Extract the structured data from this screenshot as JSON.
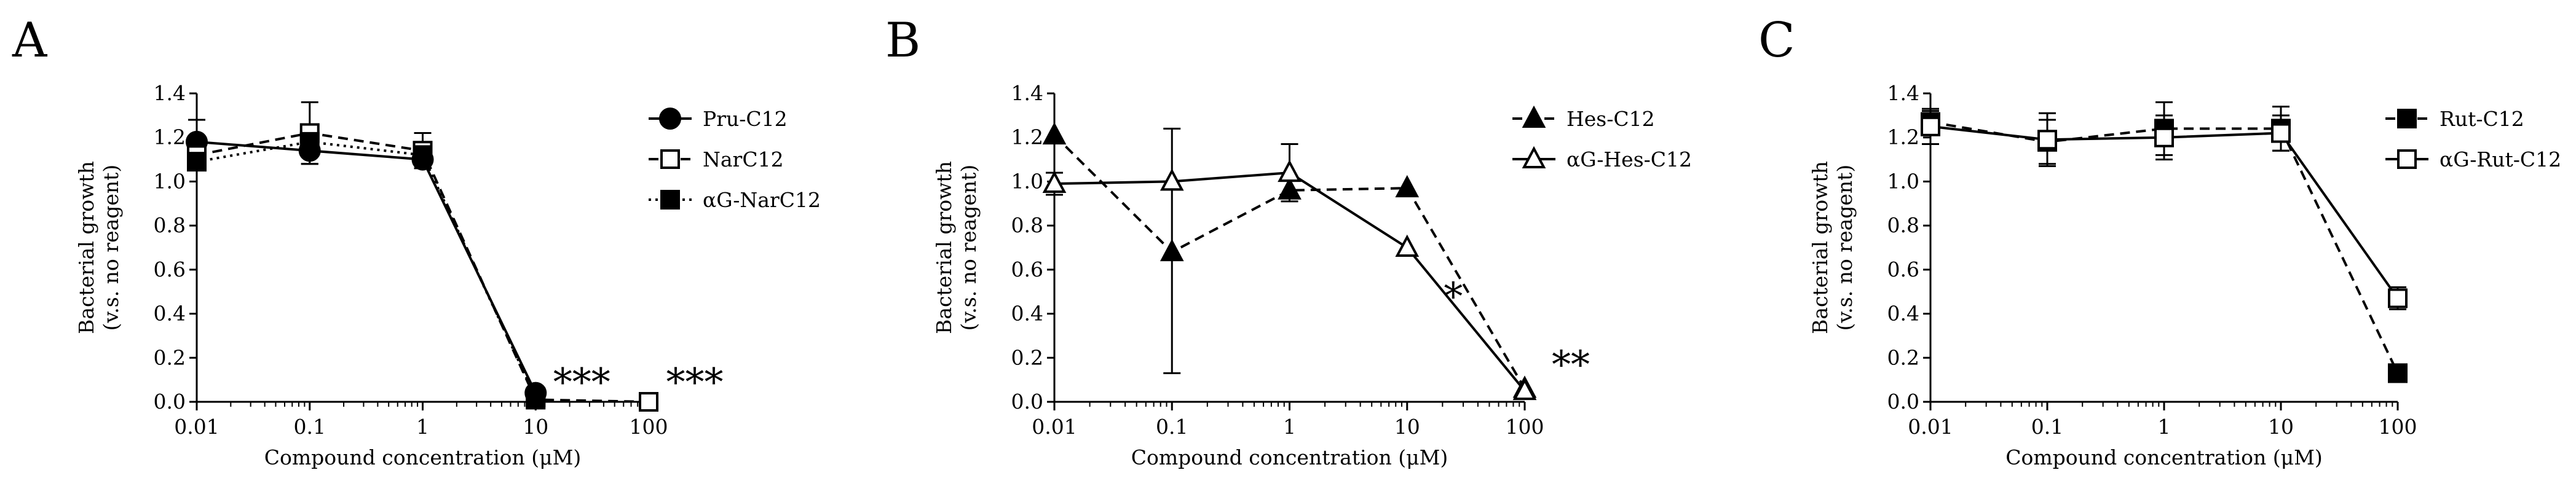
{
  "chart_data": [
    {
      "type": "line",
      "panel": "A",
      "xlabel": "Compound concentration (μM)",
      "ylabel_line1": "Bacterial growth",
      "ylabel_line2": "(v.s. no reagent)",
      "x_scale": "log",
      "xlim": [
        0.01,
        100
      ],
      "ylim": [
        0,
        1.4
      ],
      "x_ticks": [
        "0.01",
        "0.1",
        "1",
        "10",
        "100"
      ],
      "y_ticks": [
        "0.0",
        "0.2",
        "0.4",
        "0.6",
        "0.8",
        "1.0",
        "1.2",
        "1.4"
      ],
      "legend_position": "top-right",
      "series": [
        {
          "name": "Pru-C12",
          "marker": "circle",
          "fill": "filled",
          "line": "solid",
          "points": [
            {
              "x": 0.01,
              "y": 1.18,
              "err": 0.1
            },
            {
              "x": 0.1,
              "y": 1.14,
              "err": 0.06
            },
            {
              "x": 1,
              "y": 1.1,
              "err": 0.03
            },
            {
              "x": 10,
              "y": 0.04,
              "err": 0.01
            }
          ]
        },
        {
          "name": "NarC12",
          "marker": "square",
          "fill": "open",
          "line": "dashed",
          "points": [
            {
              "x": 0.01,
              "y": 1.12,
              "err": 0.03
            },
            {
              "x": 0.1,
              "y": 1.22,
              "err": 0.14
            },
            {
              "x": 1,
              "y": 1.14,
              "err": 0.08
            },
            {
              "x": 10,
              "y": 0.01,
              "err": 0.01
            },
            {
              "x": 100,
              "y": 0.0,
              "err": 0
            }
          ]
        },
        {
          "name": "αG-NarC12",
          "marker": "square",
          "fill": "filled",
          "line": "dotted",
          "points": [
            {
              "x": 0.01,
              "y": 1.09,
              "err": 0.03
            },
            {
              "x": 0.1,
              "y": 1.18,
              "err": 0.04
            },
            {
              "x": 1,
              "y": 1.12,
              "err": 0.03
            },
            {
              "x": 10,
              "y": 0.02,
              "err": 0.01
            }
          ]
        }
      ],
      "annotations": [
        {
          "text": "***",
          "x": 10,
          "y": 0.09
        },
        {
          "text": "***",
          "x": 100,
          "y": 0.09
        }
      ]
    },
    {
      "type": "line",
      "panel": "B",
      "xlabel": "Compound concentration (μM)",
      "ylabel_line1": "Bacterial growth",
      "ylabel_line2": "(v.s. no reagent)",
      "x_scale": "log",
      "xlim": [
        0.01,
        100
      ],
      "ylim": [
        0,
        1.4
      ],
      "x_ticks": [
        "0.01",
        "0.1",
        "1",
        "10",
        "100"
      ],
      "y_ticks": [
        "0.0",
        "0.2",
        "0.4",
        "0.6",
        "0.8",
        "1.0",
        "1.2",
        "1.4"
      ],
      "legend_position": "top-right",
      "series": [
        {
          "name": "Hes-C12",
          "marker": "triangle",
          "fill": "filled",
          "line": "dashed",
          "points": [
            {
              "x": 0.01,
              "y": 1.21,
              "err": 0
            },
            {
              "x": 0.1,
              "y": 0.68,
              "err": 0
            },
            {
              "x": 1,
              "y": 0.96,
              "err": 0
            },
            {
              "x": 10,
              "y": 0.97,
              "err": 0
            },
            {
              "x": 100,
              "y": 0.06,
              "err": 0
            }
          ]
        },
        {
          "name": "αG-Hes-C12",
          "marker": "triangle",
          "fill": "open",
          "line": "solid",
          "points": [
            {
              "x": 0.01,
              "y": 0.99,
              "err": 0.05
            },
            {
              "x": 0.1,
              "y": 1.0,
              "err": 0.24
            },
            {
              "x": 1,
              "y": 1.04,
              "err": 0.13
            },
            {
              "x": 10,
              "y": 0.7,
              "err": 0
            },
            {
              "x": 100,
              "y": 0.05,
              "err": 0
            }
          ],
          "asym_err": [
            {
              "x": 0.1,
              "low": 0.13,
              "high": 1.24
            }
          ]
        }
      ],
      "annotations": [
        {
          "text": "*",
          "x": 10,
          "y": 0.48
        },
        {
          "text": "**",
          "x": 100,
          "y": 0.17
        }
      ]
    },
    {
      "type": "line",
      "panel": "C",
      "xlabel": "Compound concentration (μM)",
      "ylabel_line1": "Bacterial growth",
      "ylabel_line2": "(v.s. no reagent)",
      "x_scale": "log",
      "xlim": [
        0.01,
        100
      ],
      "ylim": [
        0,
        1.4
      ],
      "x_ticks": [
        "0.01",
        "0.1",
        "1",
        "10",
        "100"
      ],
      "y_ticks": [
        "0.0",
        "0.2",
        "0.4",
        "0.6",
        "0.8",
        "1.0",
        "1.2",
        "1.4"
      ],
      "legend_position": "top-right",
      "series": [
        {
          "name": "Rut-C12",
          "marker": "square",
          "fill": "filled",
          "line": "dashed",
          "points": [
            {
              "x": 0.01,
              "y": 1.27,
              "err": 0.05
            },
            {
              "x": 0.1,
              "y": 1.18,
              "err": 0.1
            },
            {
              "x": 1,
              "y": 1.24,
              "err": 0.12
            },
            {
              "x": 10,
              "y": 1.24,
              "err": 0.1
            },
            {
              "x": 100,
              "y": 0.13,
              "err": 0.01
            }
          ]
        },
        {
          "name": "αG-Rut-C12",
          "marker": "square",
          "fill": "open",
          "line": "solid",
          "points": [
            {
              "x": 0.01,
              "y": 1.25,
              "err": 0.08
            },
            {
              "x": 0.1,
              "y": 1.19,
              "err": 0.12
            },
            {
              "x": 1,
              "y": 1.2,
              "err": 0.1
            },
            {
              "x": 10,
              "y": 1.22,
              "err": 0.08
            },
            {
              "x": 100,
              "y": 0.47,
              "err": 0.05
            }
          ]
        }
      ],
      "annotations": []
    }
  ]
}
